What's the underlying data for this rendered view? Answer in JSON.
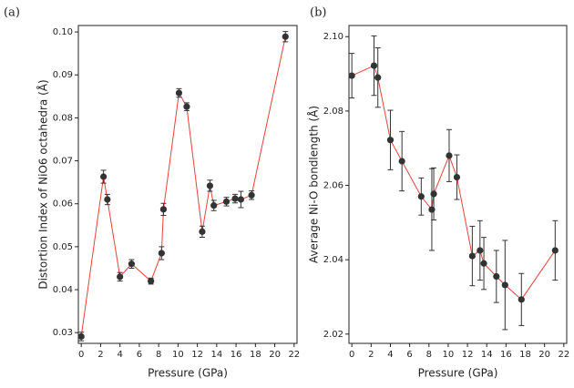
{
  "chart_data": [
    {
      "type": "line",
      "panel_label": "(a)",
      "x_label": "Pressure (GPa)",
      "y_label": "Distortion Index of NiO6 octahedra (Å)",
      "x": [
        0,
        2.3,
        2.7,
        4.0,
        5.2,
        7.2,
        8.3,
        8.5,
        10.1,
        10.9,
        12.5,
        13.3,
        13.7,
        15.0,
        15.9,
        16.5,
        17.6,
        21.1
      ],
      "series": [
        {
          "color": "#e8413a",
          "marker_color": "#333333",
          "values": [
            0.0291,
            0.0663,
            0.061,
            0.043,
            0.046,
            0.042,
            0.0485,
            0.0587,
            0.0858,
            0.0826,
            0.0535,
            0.0642,
            0.0596,
            0.0605,
            0.0612,
            0.061,
            0.062,
            0.0989
          ],
          "errors": [
            0.001,
            0.0015,
            0.0012,
            0.001,
            0.001,
            0.0007,
            0.0015,
            0.0014,
            0.001,
            0.0009,
            0.0013,
            0.0013,
            0.0012,
            0.001,
            0.001,
            0.0019,
            0.001,
            0.0012
          ]
        }
      ],
      "xlim": [
        -0.3,
        22.3
      ],
      "xticks": [
        0,
        2,
        4,
        6,
        8,
        10,
        12,
        14,
        16,
        18,
        20,
        22
      ],
      "ylim": [
        0.0275,
        0.1015
      ],
      "yticks": [
        0.03,
        0.04,
        0.05,
        0.06,
        0.07,
        0.08,
        0.09,
        {
          "value": 0.1,
          "label": "0.10"
        }
      ]
    },
    {
      "type": "line",
      "panel_label": "(b)",
      "x_label": "Pressure (GPa)",
      "y_label": "Average Ni-O bondlength (Å)",
      "x": [
        0,
        2.3,
        2.7,
        4.0,
        5.2,
        7.2,
        8.3,
        8.5,
        10.1,
        10.9,
        12.5,
        13.3,
        13.7,
        15.0,
        15.9,
        17.6,
        21.1
      ],
      "series": [
        {
          "color": "#e8413a",
          "marker_color": "#333333",
          "values": [
            2.0895,
            2.0922,
            2.089,
            2.0722,
            2.0665,
            2.057,
            2.0535,
            2.0577,
            2.068,
            2.0622,
            2.041,
            2.0425,
            2.039,
            2.0355,
            2.0332,
            2.0293,
            2.0425
          ],
          "errors": [
            0.006,
            0.008,
            0.008,
            0.008,
            0.008,
            0.005,
            0.011,
            0.007,
            0.007,
            0.006,
            0.008,
            0.008,
            0.007,
            0.007,
            0.012,
            0.007,
            0.008
          ]
        }
      ],
      "xlim": [
        -0.3,
        22.3
      ],
      "xticks": [
        0,
        2,
        4,
        6,
        8,
        10,
        12,
        14,
        16,
        18,
        20,
        22
      ],
      "ylim": [
        2.0175,
        2.103
      ],
      "yticks": [
        2.02,
        2.04,
        2.06,
        2.08,
        {
          "value": 2.1,
          "label": "2.10"
        }
      ]
    }
  ]
}
